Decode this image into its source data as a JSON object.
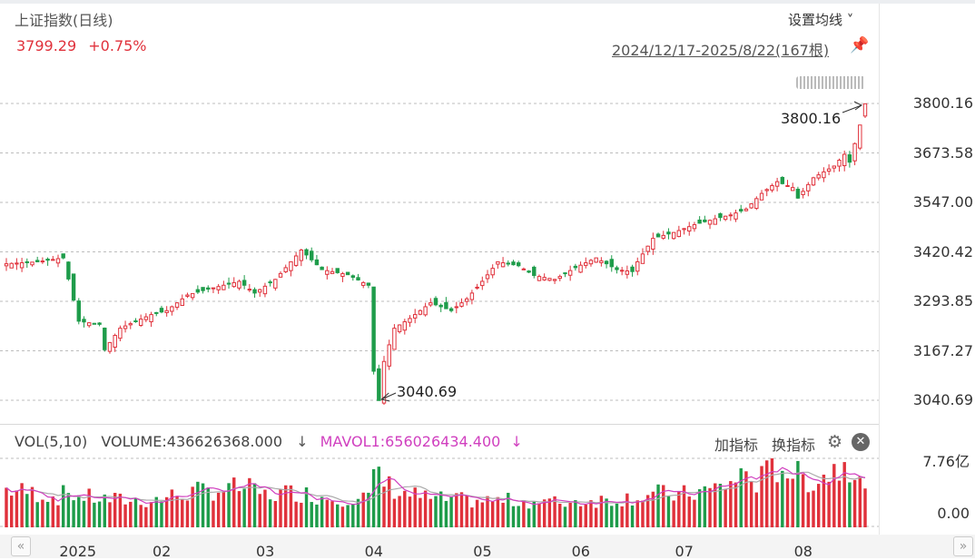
{
  "header": {
    "title": "上证指数(日线)",
    "price": "3799.29",
    "change": "+0.75%",
    "ma_setting": "设置均线 ˅",
    "date_range": "2024/12/17-2025/8/22(167根)"
  },
  "y_axis_labels": [
    "3800.16",
    "3673.58",
    "3547.00",
    "3420.42",
    "3293.85",
    "3167.27",
    "3040.69"
  ],
  "annotations": {
    "high": "3800.16",
    "low": "3040.69"
  },
  "volume_header": {
    "label": "VOL(5,10)",
    "volume": "VOLUME:436626368.000",
    "arrow": "↓",
    "mavol": "MAVOL1:656026434.400",
    "mavol_arrow": "↓",
    "add_indicator": "加指标",
    "swap_indicator": "换指标"
  },
  "volume_axis": {
    "max": "7.76亿",
    "min": "0.00"
  },
  "x_axis_labels": [
    "2025",
    "02",
    "03",
    "04",
    "05",
    "06",
    "07",
    "08"
  ],
  "colors": {
    "up": "#e0313b",
    "down": "#1e9c4a",
    "ma5": "#d03fbf",
    "ma10": "#aaaaaa"
  },
  "chart_data": {
    "type": "candlestick",
    "title": "上证指数(日线)",
    "ylim": [
      3040.69,
      3800.16
    ],
    "volume_ylim": [
      0,
      7.76
    ],
    "volume_unit": "亿",
    "period": "2024/12/17-2025/8/22",
    "count": 167,
    "high": 3800.16,
    "low": 3040.69,
    "month_anchors": [
      {
        "label": "2025",
        "index": 12
      },
      {
        "label": "02",
        "index": 30
      },
      {
        "label": "03",
        "index": 50
      },
      {
        "label": "04",
        "index": 71
      },
      {
        "label": "05",
        "index": 92
      },
      {
        "label": "06",
        "index": 111
      },
      {
        "label": "07",
        "index": 131
      },
      {
        "label": "08",
        "index": 154
      }
    ],
    "close_path": [
      [
        0,
        3390
      ],
      [
        6,
        3395
      ],
      [
        11,
        3405
      ],
      [
        12,
        3351
      ],
      [
        14,
        3243
      ],
      [
        18,
        3235
      ],
      [
        19,
        3170
      ],
      [
        22,
        3225
      ],
      [
        28,
        3260
      ],
      [
        31,
        3270
      ],
      [
        35,
        3310
      ],
      [
        39,
        3325
      ],
      [
        45,
        3345
      ],
      [
        48,
        3315
      ],
      [
        52,
        3350
      ],
      [
        57,
        3425
      ],
      [
        61,
        3375
      ],
      [
        66,
        3362
      ],
      [
        70,
        3335
      ],
      [
        71,
        3115
      ],
      [
        72,
        3040
      ],
      [
        73,
        3140
      ],
      [
        75,
        3225
      ],
      [
        78,
        3250
      ],
      [
        82,
        3290
      ],
      [
        86,
        3270
      ],
      [
        89,
        3300
      ],
      [
        92,
        3345
      ],
      [
        95,
        3395
      ],
      [
        99,
        3385
      ],
      [
        102,
        3360
      ],
      [
        106,
        3350
      ],
      [
        110,
        3380
      ],
      [
        114,
        3405
      ],
      [
        118,
        3375
      ],
      [
        121,
        3370
      ],
      [
        122,
        3395
      ],
      [
        125,
        3455
      ],
      [
        129,
        3470
      ],
      [
        133,
        3490
      ],
      [
        137,
        3505
      ],
      [
        140,
        3515
      ],
      [
        143,
        3530
      ],
      [
        146,
        3570
      ],
      [
        149,
        3600
      ],
      [
        152,
        3585
      ],
      [
        153,
        3558
      ],
      [
        156,
        3610
      ],
      [
        160,
        3640
      ],
      [
        162,
        3670
      ],
      [
        163,
        3650
      ],
      [
        165,
        3745
      ],
      [
        166,
        3799.29
      ]
    ],
    "volume_path": [
      [
        0,
        4.3
      ],
      [
        6,
        3.8
      ],
      [
        10,
        3.4
      ],
      [
        12,
        4.0
      ],
      [
        14,
        3.5
      ],
      [
        20,
        3.1
      ],
      [
        28,
        3.0
      ],
      [
        34,
        3.8
      ],
      [
        40,
        4.2
      ],
      [
        46,
        4.5
      ],
      [
        50,
        3.6
      ],
      [
        56,
        4.0
      ],
      [
        60,
        3.5
      ],
      [
        64,
        3.3
      ],
      [
        70,
        3.4
      ],
      [
        71,
        5.2
      ],
      [
        72,
        6.3
      ],
      [
        73,
        5.0
      ],
      [
        76,
        4.0
      ],
      [
        82,
        3.2
      ],
      [
        90,
        3.0
      ],
      [
        100,
        3.0
      ],
      [
        106,
        2.8
      ],
      [
        112,
        3.0
      ],
      [
        118,
        3.2
      ],
      [
        126,
        3.8
      ],
      [
        130,
        3.6
      ],
      [
        136,
        4.2
      ],
      [
        140,
        5.0
      ],
      [
        143,
        6.2
      ],
      [
        145,
        5.0
      ],
      [
        148,
        6.5
      ],
      [
        150,
        7.0
      ],
      [
        152,
        6.0
      ],
      [
        156,
        5.2
      ],
      [
        160,
        6.5
      ],
      [
        162,
        7.4
      ],
      [
        164,
        7.0
      ],
      [
        165,
        6.5
      ],
      [
        166,
        4.37
      ]
    ]
  }
}
